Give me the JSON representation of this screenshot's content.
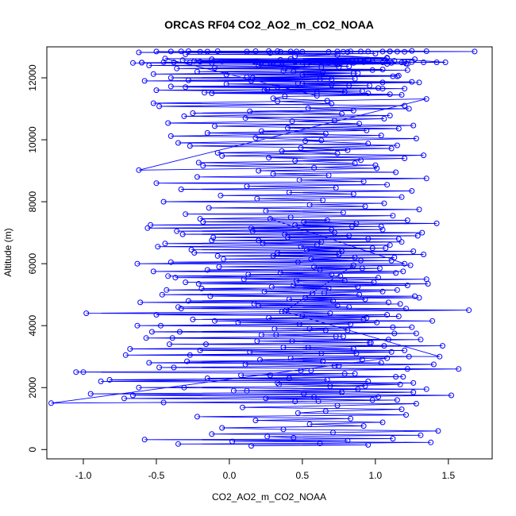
{
  "chart_data": {
    "type": "scatter",
    "style": "points connected by lines",
    "title": "ORCAS RF04 CO2_AO2_m_CO2_NOAA",
    "xlabel": "CO2_AO2_m_CO2_NOAA",
    "ylabel": "Altitude (m)",
    "xlim": [
      -1.25,
      1.8
    ],
    "ylim": [
      -300,
      13000
    ],
    "xticks": [
      -1.0,
      -0.5,
      0.0,
      0.5,
      1.0,
      1.5
    ],
    "xtick_labels": [
      "-1.0",
      "-0.5",
      "0.0",
      "0.5",
      "1.0",
      "1.5"
    ],
    "yticks": [
      0,
      2000,
      4000,
      6000,
      8000,
      10000,
      12000
    ],
    "ytick_labels": [
      "0",
      "2000",
      "4000",
      "6000",
      "8000",
      "10000",
      "12000"
    ],
    "grid": false,
    "legend": "none",
    "series_color": "#0000ff",
    "series": [
      {
        "x": [
          0.15,
          0.95,
          -0.35,
          0.62,
          1.38,
          0.02,
          0.81,
          -0.58,
          1.12,
          0.44,
          0.26,
          1.31,
          -0.12,
          0.71,
          1.43,
          0.37,
          -0.05,
          0.92,
          0.55,
          1.05,
          0.18,
          0.83,
          -0.22,
          1.21,
          0.47,
          0.66,
          1.18,
          0.09,
          0.74,
          1.28,
          -0.45,
          0.61,
          0.98,
          0.25,
          1.02,
          -0.66,
          0.51,
          1.26,
          0.12,
          0.88,
          -0.31,
          0.69,
          1.17,
          0.33,
          0.95,
          -0.82,
          0.41,
          1.14,
          0.08,
          0.79,
          -1.05,
          0.56,
          1.22,
          -0.38,
          0.72,
          1.4,
          -0.55,
          0.64,
          0.21,
          1.08,
          -1.22,
          0.45,
          1.15,
          -0.72,
          0.58,
          1.52,
          -0.95,
          0.77,
          0.03,
          1.35,
          -0.62,
          0.93,
          0.34,
          1.26,
          -0.88,
          0.67,
          -0.15,
          1.19,
          0.28,
          0.86,
          -1.0,
          0.49,
          1.57,
          -0.48,
          0.75,
          0.11,
          1.04,
          -0.29,
          0.91,
          0.42,
          1.23,
          -0.71,
          0.63,
          1.11,
          -0.2,
          0.85,
          0.37,
          1.46,
          -0.41,
          0.97,
          0.19,
          1.09,
          -0.57,
          0.73,
          0.32,
          1.28,
          -0.34,
          0.81,
          0.55,
          1.12,
          -0.63,
          0.48,
          1.01,
          -0.1,
          0.92,
          0.27,
          1.16,
          -0.5,
          0.69,
          0.38,
          1.44,
          -0.27,
          0.87,
          0.14,
          1.2,
          -0.68,
          0.54,
          1.06,
          -0.16,
          0.96,
          0.43,
          1.31,
          -0.39,
          0.78,
          0.22,
          1.13,
          -0.53,
          0.66,
          0.31,
          1.25,
          -0.47,
          0.83,
          0.06,
          1.39,
          -0.25,
          0.94,
          0.5,
          1.08,
          -0.98,
          0.36,
          1.64,
          -0.33,
          0.82,
          0.2,
          1.17,
          -0.61,
          0.71,
          0.41,
          1.3,
          -0.13,
          0.89,
          0.57,
          1.05,
          -0.43,
          0.68,
          0.29,
          1.22,
          -0.21,
          0.99,
          0.46,
          1.35,
          -0.37,
          0.76,
          0.13,
          1.14,
          -0.52,
          0.62,
          1.03,
          -0.07,
          0.85,
          0.39,
          1.21,
          -0.35,
          0.74,
          0.17,
          1.09,
          -0.28,
          0.93,
          0.52,
          1.27,
          -0.46,
          0.65,
          0.24,
          1.15,
          -0.19,
          0.88,
          0.44,
          1.36,
          -0.3,
          0.79,
          0.1,
          1.02,
          -0.42,
          0.7,
          0.35,
          1.19,
          -0.15,
          0.91,
          0.58,
          1.24,
          -0.63,
          0.47,
          1.11,
          -0.04,
          0.86,
          0.3,
          1.33,
          -0.24,
          0.77,
          0.53,
          1.07,
          -0.49,
          0.6,
          0.23,
          1.18,
          -0.12,
          0.95,
          0.4,
          1.29,
          -0.32,
          0.72,
          0.16,
          1.05,
          -0.56,
          0.84,
          0.45,
          1.42,
          -0.18,
          0.67,
          0.28,
          1.2,
          -0.4,
          0.9,
          0.56,
          1.13,
          -0.08,
          0.75,
          0.33,
          1.26,
          -0.26,
          0.98,
          0.49,
          1.1,
          -0.44,
          0.63,
          0.2,
          1.16,
          -0.11,
          0.82,
          0.38,
          1.32,
          -0.36,
          0.7,
          0.15,
          1.04,
          -0.54,
          0.87,
          0.51,
          1.22,
          -0.2,
          0.42,
          1.12,
          -0.3,
          0.78,
          0.25,
          1.3,
          -0.14,
          0.93,
          0.55,
          1.06,
          -0.45,
          0.64,
          0.19,
          1.18,
          -0.06,
          0.85,
          0.41,
          1.25,
          -0.33,
          0.73,
          0.12,
          1.08,
          -0.5,
          0.92,
          0.48,
          1.35,
          -0.22,
          0.68,
          0.3,
          1.14,
          0.2,
          1.01,
          -0.18,
          0.86,
          0.45,
          1.2,
          -0.05,
          0.74,
          0.36,
          1.11,
          -0.27,
          0.95,
          0.52,
          1.28,
          -0.4,
          0.66,
          0.22,
          1.16,
          -0.1,
          0.89,
          0.43,
          1.06,
          -0.31,
          0.77,
          0.14,
          1.23,
          -0.48,
          0.7,
          0.33,
          1.35,
          -0.62,
          0.58,
          1.0,
          -0.21,
          0.9,
          0.27,
          1.33,
          -0.08,
          0.81,
          0.49,
          1.15,
          -0.35,
          0.63,
          0.18,
          1.04,
          -0.15,
          0.94,
          0.4,
          1.26,
          -0.42,
          0.72,
          0.11,
          1.1,
          -0.25,
          0.85,
          0.54,
          1.2,
          -0.52,
          0.67,
          0.3,
          0.38,
          1.18,
          -0.12,
          0.79,
          0.24,
          1.05,
          -0.3,
          0.96,
          0.5,
          1.3,
          -0.58,
          0.62,
          0.16,
          1.12,
          -0.02,
          0.88,
          0.44,
          1.22,
          -0.36,
          0.75,
          0.2,
          1.08,
          -0.66,
          0.57,
          0.98,
          -0.24,
          0.84,
          0.35,
          1.27,
          -0.44,
          0.6,
          1.1,
          -0.17,
          0.91,
          0.26,
          1.02,
          -0.4,
          0.7,
          0.47,
          1.25,
          -0.28,
          0.86,
          0.12,
          1.16,
          -0.52,
          0.64,
          0.37,
          1.05,
          -0.1,
          0.82,
          0.53,
          1.21,
          -0.6,
          0.72,
          0.19,
          1.13,
          -0.32,
          0.95,
          0.42,
          1.08,
          0.3,
          1.2,
          -0.2,
          0.85,
          0.5,
          1.42,
          -0.05,
          0.76,
          0.36,
          1.25,
          -0.27,
          0.92,
          0.17,
          1.11,
          -0.38,
          0.68,
          0.45,
          1.33,
          -0.12,
          0.87,
          0.28,
          1.18,
          -0.45,
          0.73,
          0.55,
          1.05,
          -0.6,
          0.63,
          0.22,
          1.48,
          0.35,
          1.1,
          -0.08,
          0.81,
          0.42,
          1.25,
          -0.2,
          0.9,
          0.18,
          1.15,
          -0.33,
          0.74,
          0.5,
          1.35,
          -0.5,
          0.68,
          0.27,
          1.05,
          -0.15,
          0.83,
          0.46,
          1.2,
          -0.28,
          0.95,
          0.12,
          1.1,
          -0.4,
          0.78,
          0.33,
          1.68,
          -0.62,
          0.28,
          1.0,
          -0.3,
          0.74,
          0.45,
          1.08,
          -0.12,
          0.9,
          0.2,
          1.22,
          -0.55,
          0.63,
          0.38,
          0.98,
          -0.22,
          0.85,
          0.5,
          1.15,
          -0.4,
          0.7,
          0.15,
          1.05,
          -0.02,
          0.82,
          0.33,
          1.2,
          -0.5,
          0.6,
          0.95
        ],
        "y": [
          120,
          150,
          180,
          200,
          230,
          260,
          290,
          320,
          350,
          380,
          420,
          460,
          500,
          550,
          600,
          650,
          700,
          760,
          820,
          880,
          940,
          1000,
          1060,
          1120,
          1180,
          1240,
          1300,
          1360,
          1420,
          1480,
          1520,
          1560,
          1600,
          1650,
          1700,
          1750,
          1800,
          1850,
          1900,
          1950,
          2000,
          2050,
          2100,
          2150,
          2200,
          2250,
          2300,
          2350,
          2400,
          2450,
          2500,
          2550,
          2600,
          2650,
          2700,
          2750,
          2800,
          2850,
          2900,
          2950,
          1500,
          1550,
          1600,
          1650,
          1700,
          1750,
          1800,
          1850,
          1900,
          1950,
          2000,
          2050,
          2100,
          2150,
          2200,
          2250,
          2300,
          2350,
          2400,
          2450,
          2500,
          2550,
          2600,
          2650,
          2700,
          2750,
          2800,
          2850,
          2900,
          2950,
          3000,
          3050,
          3100,
          3150,
          3200,
          3250,
          3300,
          3350,
          3400,
          3450,
          3500,
          3550,
          3600,
          3650,
          3700,
          3750,
          3800,
          3850,
          3900,
          3950,
          4000,
          4050,
          4100,
          4150,
          4200,
          4250,
          4300,
          4350,
          4400,
          4450,
          3000,
          3050,
          3100,
          3150,
          3200,
          3250,
          3300,
          3350,
          3400,
          3450,
          3500,
          3550,
          3600,
          3650,
          3700,
          3750,
          3800,
          3850,
          3900,
          3950,
          4000,
          4050,
          4100,
          4150,
          4200,
          4250,
          4300,
          4350,
          4400,
          4450,
          4500,
          4550,
          4600,
          4650,
          4700,
          4750,
          4800,
          4850,
          4900,
          4950,
          5000,
          5050,
          5100,
          5150,
          5200,
          5250,
          5300,
          5350,
          5400,
          5450,
          5500,
          5550,
          5600,
          5650,
          5700,
          5750,
          5800,
          5850,
          5900,
          5950,
          4500,
          4550,
          4600,
          4650,
          4700,
          4750,
          4800,
          4850,
          4900,
          4950,
          5000,
          5050,
          5100,
          5150,
          5200,
          5250,
          5300,
          5350,
          5400,
          5450,
          5500,
          5550,
          5600,
          5650,
          5700,
          5750,
          5800,
          5850,
          5900,
          5950,
          6000,
          6050,
          6100,
          6150,
          6200,
          6250,
          6300,
          6350,
          6400,
          6450,
          6500,
          6550,
          6600,
          6650,
          6700,
          6750,
          6800,
          6850,
          6900,
          6950,
          7000,
          7050,
          7100,
          7150,
          7200,
          7250,
          7300,
          7350,
          7400,
          7450,
          6000,
          6050,
          6100,
          6150,
          6200,
          6250,
          6300,
          6350,
          6400,
          6450,
          6500,
          6550,
          6600,
          6650,
          6700,
          6750,
          6800,
          6850,
          6900,
          6950,
          7000,
          7050,
          7100,
          7150,
          7200,
          7250,
          7300,
          7350,
          7400,
          7450,
          7500,
          7550,
          7600,
          7650,
          7700,
          7750,
          7800,
          7850,
          7900,
          7950,
          8000,
          8050,
          8100,
          8150,
          8200,
          8250,
          8300,
          8350,
          8400,
          8450,
          8500,
          8550,
          8600,
          8650,
          8700,
          8750,
          8800,
          8850,
          8900,
          8950,
          9000,
          9080,
          9160,
          9240,
          9320,
          9400,
          9480,
          9560,
          9640,
          9720,
          9800,
          9880,
          9960,
          10040,
          10120,
          10200,
          10280,
          10360,
          10440,
          10520,
          10600,
          10680,
          10760,
          10840,
          10920,
          11000,
          11080,
          11160,
          11240,
          11320,
          9020,
          9100,
          9180,
          9260,
          9340,
          9420,
          9500,
          9580,
          9660,
          9740,
          9820,
          9900,
          9980,
          10060,
          10140,
          10220,
          10300,
          10380,
          10460,
          10540,
          10620,
          10700,
          10780,
          10860,
          10940,
          11020,
          11100,
          11180,
          11260,
          11340,
          11400,
          11450,
          11500,
          11550,
          11600,
          11650,
          11700,
          11750,
          11800,
          11850,
          11900,
          11950,
          12000,
          12050,
          12100,
          12150,
          12200,
          12250,
          12300,
          12350,
          12400,
          12450,
          12480,
          12500,
          12520,
          12540,
          12560,
          12580,
          12600,
          12620,
          11420,
          11470,
          11520,
          11570,
          11620,
          11670,
          11720,
          11770,
          11820,
          11870,
          11920,
          11970,
          12020,
          12070,
          12120,
          12170,
          12220,
          12270,
          12320,
          12370,
          12420,
          12460,
          12490,
          12510,
          12530,
          12550,
          12570,
          12590,
          12610,
          12630,
          12500,
          12510,
          12520,
          12480,
          12490,
          12500,
          12530,
          12470,
          12500,
          12510,
          12495,
          12505,
          12520,
          12480,
          12500,
          12490,
          12510,
          12500,
          12485,
          12515,
          12500,
          12495,
          12505,
          12480,
          12520,
          12500,
          12490,
          12510,
          12500,
          12500,
          12840,
          12850,
          12860,
          12830,
          12850,
          12870,
          12840,
          12850,
          12860,
          12845,
          12855,
          12850,
          12840,
          12860,
          12850,
          12835,
          12865,
          12850,
          12845,
          12855,
          12850,
          12840,
          12860,
          12850,
          12845,
          12855,
          12850,
          12840,
          12860,
          12850,
          12820,
          12800,
          12780,
          12760,
          12740,
          12700,
          12650,
          12600,
          12550,
          12500,
          12450,
          12400,
          12350,
          12300,
          12250,
          12200,
          12150,
          12100,
          12050,
          12000,
          11950,
          11900,
          11850,
          11800,
          11750,
          11700,
          11650,
          11600,
          11550,
          11500
        ]
      }
    ]
  }
}
